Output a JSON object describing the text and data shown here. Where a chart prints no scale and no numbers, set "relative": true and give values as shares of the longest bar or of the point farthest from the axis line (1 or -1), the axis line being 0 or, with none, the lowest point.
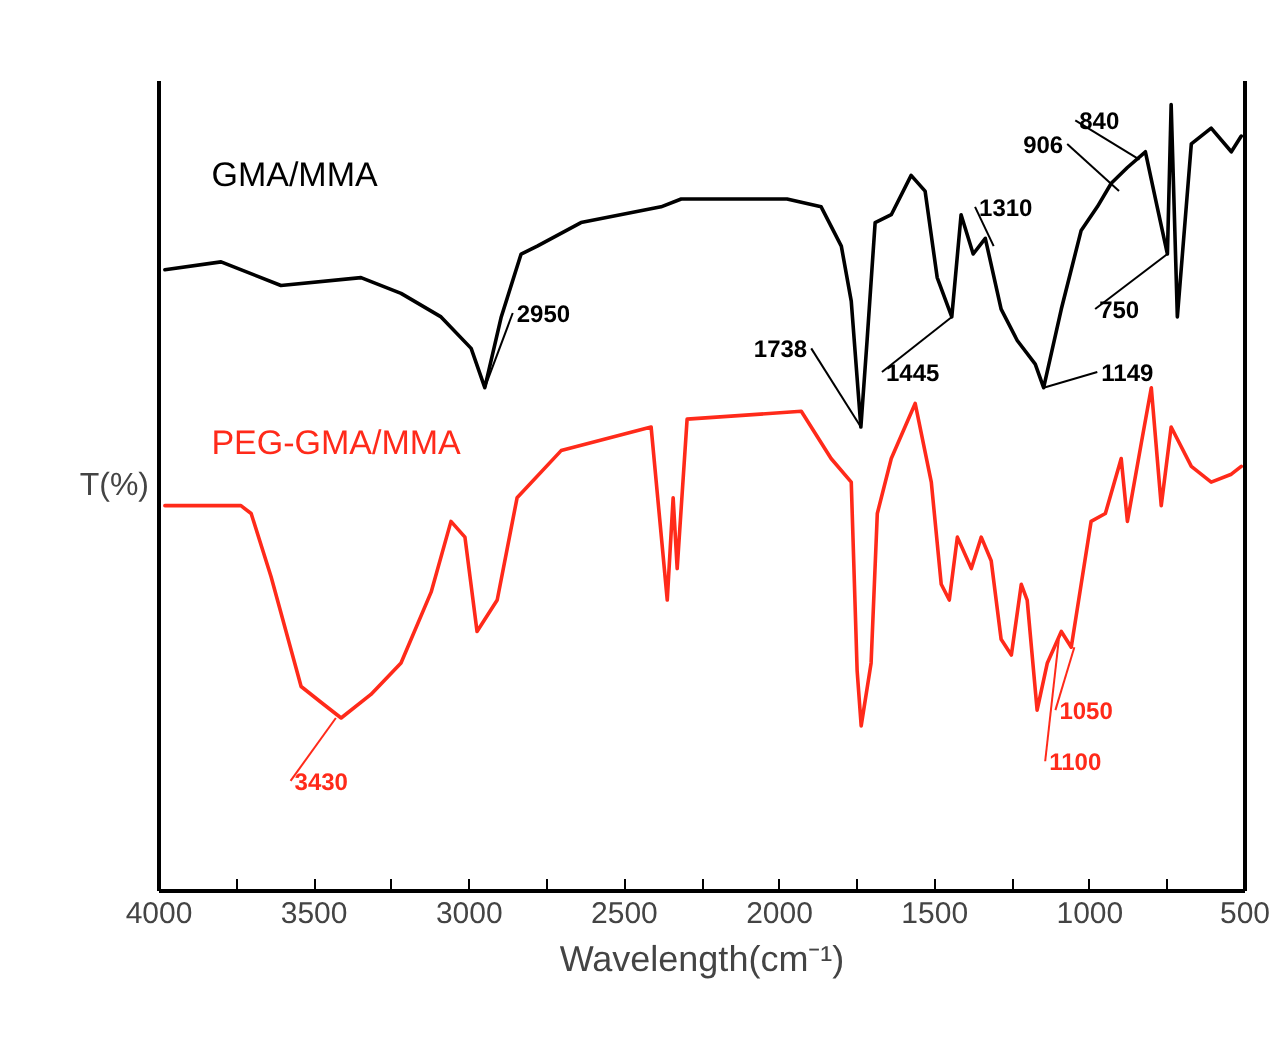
{
  "chart_data": {
    "type": "line",
    "relative": true,
    "xlabel": "Wavelength(cm⁻¹)",
    "ylabel": "T(%)",
    "xlim": [
      4000,
      500
    ],
    "xticks": [
      4000,
      {
        "value": 3750,
        "label": null
      },
      3500,
      {
        "value": 3250,
        "label": null
      },
      3000,
      {
        "value": 2750,
        "label": null
      },
      2500,
      {
        "value": 2250,
        "label": null
      },
      2000,
      {
        "value": 1750,
        "label": null
      },
      1500,
      {
        "value": 1250,
        "label": null
      },
      1000,
      {
        "value": 750,
        "label": null
      },
      500
    ],
    "grid": false,
    "legend": false,
    "marker": "none",
    "line_style": "solid",
    "series": [
      {
        "name": "GMA/MMA",
        "color": "#000000",
        "x": [
          3981,
          3800,
          3607,
          3349,
          3220,
          3091,
          2994,
          2950,
          2897,
          2833,
          2781,
          2640,
          2382,
          2317,
          1976,
          1866,
          1801,
          1769,
          1738,
          1718,
          1692,
          1640,
          1576,
          1531,
          1492,
          1445,
          1415,
          1376,
          1337,
          1286,
          1234,
          1176,
          1149,
          1092,
          1028,
          976,
          931,
          879,
          821,
          783,
          750,
          738,
          718,
          673,
          609,
          544,
          512
        ],
        "values": [
          0.79,
          0.8,
          0.77,
          0.78,
          0.76,
          0.73,
          0.69,
          0.64,
          0.73,
          0.81,
          0.82,
          0.85,
          0.87,
          0.88,
          0.88,
          0.87,
          0.82,
          0.75,
          0.59,
          0.7,
          0.85,
          0.86,
          0.91,
          0.89,
          0.78,
          0.73,
          0.86,
          0.81,
          0.83,
          0.74,
          0.7,
          0.67,
          0.64,
          0.74,
          0.84,
          0.87,
          0.9,
          0.92,
          0.94,
          0.87,
          0.81,
          1.0,
          0.73,
          0.95,
          0.97,
          0.94,
          0.96
        ]
      },
      {
        "name": "PEG-GMA/MMA",
        "color": "#ff2a1a",
        "x": [
          3981,
          3736,
          3703,
          3639,
          3542,
          3478,
          3413,
          3317,
          3220,
          3123,
          3059,
          3014,
          2975,
          2910,
          2846,
          2704,
          2414,
          2362,
          2343,
          2330,
          2298,
          1930,
          1834,
          1769,
          1750,
          1737,
          1705,
          1685,
          1640,
          1563,
          1511,
          1479,
          1453,
          1427,
          1382,
          1350,
          1318,
          1286,
          1253,
          1221,
          1202,
          1170,
          1137,
          1092,
          1060,
          1028,
          996,
          950,
          899,
          879,
          834,
          802,
          770,
          738,
          673,
          609,
          544,
          512
        ],
        "values": [
          0.49,
          0.49,
          0.48,
          0.4,
          0.26,
          0.24,
          0.22,
          0.25,
          0.29,
          0.38,
          0.47,
          0.45,
          0.33,
          0.37,
          0.5,
          0.56,
          0.59,
          0.37,
          0.5,
          0.41,
          0.6,
          0.61,
          0.55,
          0.52,
          0.28,
          0.21,
          0.29,
          0.48,
          0.55,
          0.62,
          0.52,
          0.39,
          0.37,
          0.45,
          0.41,
          0.45,
          0.42,
          0.32,
          0.3,
          0.39,
          0.37,
          0.23,
          0.29,
          0.33,
          0.31,
          0.39,
          0.47,
          0.48,
          0.55,
          0.47,
          0.57,
          0.64,
          0.49,
          0.59,
          0.54,
          0.52,
          0.53,
          0.54
        ]
      }
    ],
    "annotations": [
      {
        "text": "2950",
        "x": 2950,
        "y": 0.64
      },
      {
        "text": "1738",
        "x": 1738,
        "y": 0.59
      },
      {
        "text": "1445",
        "x": 1445,
        "y": 0.73
      },
      {
        "text": "1310",
        "x": 1310,
        "y": 0.82
      },
      {
        "text": "1149",
        "x": 1149,
        "y": 0.64
      },
      {
        "text": "906",
        "x": 906,
        "y": 0.89
      },
      {
        "text": "840",
        "x": 840,
        "y": 0.93
      },
      {
        "text": "750",
        "x": 750,
        "y": 0.81
      },
      {
        "text": "3430",
        "x": 3430,
        "y": 0.22
      },
      {
        "text": "1100",
        "x": 1100,
        "y": 0.32
      },
      {
        "text": "1050",
        "x": 1050,
        "y": 0.31
      }
    ]
  }
}
